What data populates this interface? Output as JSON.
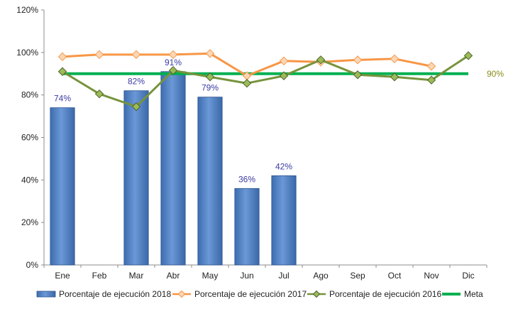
{
  "chart_data": {
    "type": "bar",
    "categories": [
      "Ene",
      "Feb",
      "Mar",
      "Abr",
      "May",
      "Jun",
      "Jul",
      "Ago",
      "Sep",
      "Oct",
      "Nov",
      "Dic"
    ],
    "ylim": [
      0,
      120
    ],
    "yticks": [
      0,
      20,
      40,
      60,
      80,
      100,
      120
    ],
    "ytick_labels": [
      "0%",
      "20%",
      "40%",
      "60%",
      "80%",
      "100%",
      "120%"
    ],
    "grid": false,
    "legend_placement": "bottom",
    "bar_series": {
      "name": "Porcentaje de ejecución 2018",
      "color": "#4f81bd",
      "values": [
        74,
        null,
        82,
        91,
        79,
        36,
        42,
        null,
        null,
        null,
        null,
        null
      ],
      "labels": [
        "74%",
        "",
        "82%",
        "91%",
        "79%",
        "36%",
        "42%",
        "",
        "",
        "",
        "",
        ""
      ]
    },
    "line_series": [
      {
        "name": "Porcentaje de ejecución 2017",
        "color": "#f79646",
        "marker": "diamond",
        "values": [
          98,
          99,
          99,
          99,
          99.5,
          89,
          96,
          95.5,
          96.5,
          97,
          93.5,
          null
        ]
      },
      {
        "name": "Porcentaje de ejecución 2016",
        "color": "#77933c",
        "marker": "diamond",
        "values": [
          91,
          80.5,
          74.5,
          91.5,
          88.5,
          85.5,
          89,
          96.5,
          89.5,
          88.5,
          87,
          98.5
        ]
      }
    ],
    "goal_line": {
      "name": "Meta",
      "color": "#00b050",
      "value": 90,
      "label": "90%"
    },
    "legend": [
      {
        "name": "Porcentaje de ejecución 2018",
        "kind": "bar"
      },
      {
        "name": "Porcentaje de ejecución 2017",
        "kind": "line-orange"
      },
      {
        "name": "Porcentaje de ejecución 2016",
        "kind": "line-green"
      },
      {
        "name": "Meta",
        "kind": "goal"
      }
    ]
  }
}
